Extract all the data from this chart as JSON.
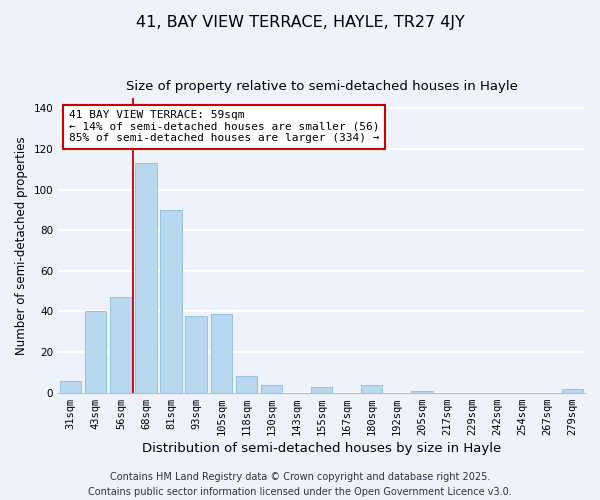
{
  "title": "41, BAY VIEW TERRACE, HAYLE, TR27 4JY",
  "subtitle": "Size of property relative to semi-detached houses in Hayle",
  "xlabel": "Distribution of semi-detached houses by size in Hayle",
  "ylabel": "Number of semi-detached properties",
  "bar_labels": [
    "31sqm",
    "43sqm",
    "56sqm",
    "68sqm",
    "81sqm",
    "93sqm",
    "105sqm",
    "118sqm",
    "130sqm",
    "143sqm",
    "155sqm",
    "167sqm",
    "180sqm",
    "192sqm",
    "205sqm",
    "217sqm",
    "229sqm",
    "242sqm",
    "254sqm",
    "267sqm",
    "279sqm"
  ],
  "bar_values": [
    6,
    40,
    47,
    113,
    90,
    38,
    39,
    8,
    4,
    0,
    3,
    0,
    4,
    0,
    1,
    0,
    0,
    0,
    0,
    0,
    2
  ],
  "bar_color": "#b8d8f0",
  "bar_edge_color": "#88bde0",
  "vline_x_index": 2.5,
  "vline_color": "#cc0000",
  "annotation_title": "41 BAY VIEW TERRACE: 59sqm",
  "annotation_line1": "← 14% of semi-detached houses are smaller (56)",
  "annotation_line2": "85% of semi-detached houses are larger (334) →",
  "annotation_box_color": "white",
  "annotation_box_edge": "#cc0000",
  "ylim": [
    0,
    145
  ],
  "yticks": [
    0,
    20,
    40,
    60,
    80,
    100,
    120,
    140
  ],
  "footer1": "Contains HM Land Registry data © Crown copyright and database right 2025.",
  "footer2": "Contains public sector information licensed under the Open Government Licence v3.0.",
  "background_color": "#eef2fb",
  "grid_color": "white",
  "title_fontsize": 11.5,
  "subtitle_fontsize": 9.5,
  "xlabel_fontsize": 9.5,
  "ylabel_fontsize": 8.5,
  "tick_fontsize": 7.5,
  "annotation_fontsize": 8.0,
  "footer_fontsize": 7.0
}
